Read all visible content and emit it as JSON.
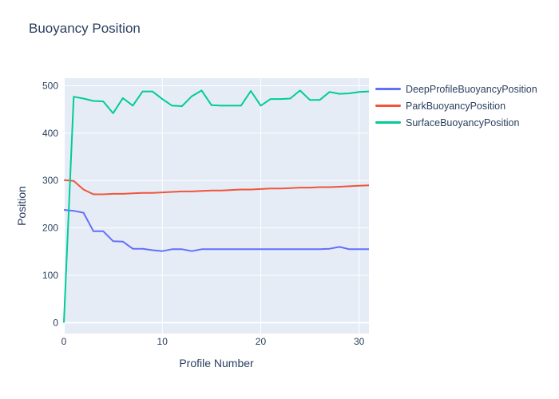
{
  "chart_data": {
    "type": "line",
    "title": "Buoyancy Position",
    "xlabel": "Profile Number",
    "ylabel": "Position",
    "x": [
      0,
      1,
      2,
      3,
      4,
      5,
      6,
      7,
      8,
      9,
      10,
      11,
      12,
      13,
      14,
      15,
      16,
      17,
      18,
      19,
      20,
      21,
      22,
      23,
      24,
      25,
      26,
      27,
      28,
      29,
      30,
      31
    ],
    "series": [
      {
        "name": "DeepProfileBuoyancyPosition",
        "color": "#636EFA",
        "values": [
          238,
          236,
          232,
          193,
          193,
          172,
          171,
          156,
          156,
          153,
          151,
          155,
          155,
          151,
          155,
          155,
          155,
          155,
          155,
          155,
          155,
          155,
          155,
          155,
          155,
          155,
          155,
          156,
          160,
          155,
          155,
          155
        ]
      },
      {
        "name": "ParkBuoyancyPosition",
        "color": "#EF553B",
        "values": [
          301,
          299,
          281,
          271,
          271,
          272,
          272,
          273,
          274,
          274,
          275,
          276,
          277,
          277,
          278,
          279,
          279,
          280,
          281,
          281,
          282,
          283,
          283,
          284,
          285,
          285,
          286,
          286,
          287,
          288,
          289,
          290
        ]
      },
      {
        "name": "SurfaceBuoyancyPosition",
        "color": "#00CC96",
        "values": [
          0,
          477,
          473,
          468,
          467,
          442,
          474,
          458,
          488,
          488,
          472,
          458,
          457,
          478,
          490,
          459,
          458,
          458,
          458,
          489,
          458,
          472,
          472,
          473,
          490,
          470,
          470,
          487,
          483,
          484,
          487,
          488
        ]
      }
    ],
    "xlim": [
      0,
      31
    ],
    "ylim": [
      -23,
      516
    ],
    "xticks": [
      0,
      10,
      20,
      30
    ],
    "yticks": [
      0,
      100,
      200,
      300,
      400,
      500
    ],
    "grid": true,
    "legend_position": "right",
    "colors": {
      "plot_bg": "#E5ECF6",
      "grid": "#FFFFFF",
      "text": "#2A3F5F"
    }
  }
}
